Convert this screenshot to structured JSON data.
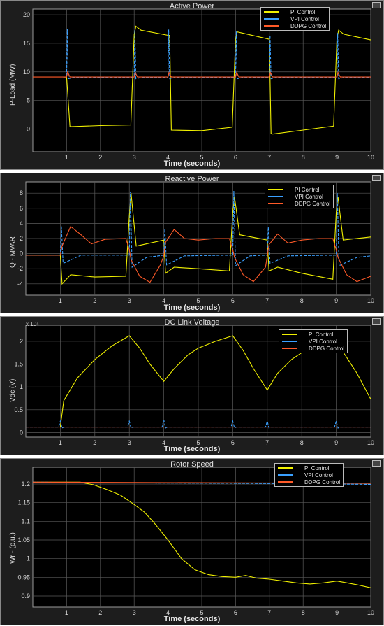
{
  "chart_data": [
    {
      "type": "line",
      "title": "Active Power",
      "xlabel": "Time (seconds)",
      "ylabel": "P-Load (MW)",
      "xlim": [
        0,
        10
      ],
      "ylim": [
        -4,
        21
      ],
      "xticks": [
        1,
        2,
        3,
        4,
        5,
        6,
        7,
        8,
        9,
        10
      ],
      "yticks": [
        0,
        5,
        10,
        15,
        20
      ],
      "grid": true,
      "legend": "top-right",
      "series": [
        {
          "name": "PI Control",
          "color": "#f0f000",
          "style": "solid",
          "x": [
            0.9,
            1.0,
            1.1,
            2.0,
            2.9,
            3.0,
            3.05,
            3.2,
            4.0,
            4.05,
            4.1,
            5.0,
            5.9,
            6.0,
            6.05,
            6.2,
            7.0,
            7.05,
            7.1,
            8.0,
            8.9,
            9.0,
            9.05,
            9.2,
            10.0
          ],
          "y": [
            9.1,
            9.1,
            0.4,
            0.6,
            0.7,
            16.5,
            18.0,
            17.3,
            16.4,
            16.4,
            -0.2,
            -0.3,
            0.3,
            15.8,
            17.0,
            16.8,
            15.7,
            -0.8,
            -0.9,
            -0.2,
            0.5,
            15.9,
            17.3,
            16.6,
            15.6
          ]
        },
        {
          "name": "VPI Control",
          "color": "#3aa0ff",
          "style": "dashed",
          "x": [
            0.9,
            1.0,
            1.02,
            1.05,
            1.2,
            2.95,
            3.0,
            3.02,
            3.05,
            3.2,
            3.95,
            4.0,
            4.02,
            4.05,
            4.2,
            5.95,
            6.0,
            6.02,
            6.05,
            6.2,
            6.95,
            7.0,
            7.02,
            7.05,
            7.2,
            8.95,
            9.0,
            9.02,
            9.05,
            9.2,
            10.0
          ],
          "y": [
            9.1,
            9.1,
            17.5,
            8.8,
            9.0,
            9.0,
            9.1,
            17.3,
            8.8,
            9.0,
            9.0,
            9.1,
            17.4,
            8.8,
            9.0,
            9.0,
            9.1,
            17.1,
            8.8,
            9.0,
            9.0,
            9.1,
            16.4,
            8.8,
            9.0,
            9.0,
            9.1,
            16.8,
            8.8,
            9.0,
            9.0
          ]
        },
        {
          "name": "DDPG Control",
          "color": "#ff5a28",
          "style": "solid",
          "x": [
            0.0,
            1.0,
            1.03,
            1.1,
            3.0,
            3.03,
            3.1,
            4.0,
            4.03,
            4.1,
            6.0,
            6.03,
            6.1,
            7.0,
            7.03,
            7.1,
            9.0,
            9.03,
            9.1,
            10.0
          ],
          "y": [
            9.1,
            9.1,
            10.0,
            9.1,
            9.1,
            9.9,
            9.1,
            9.1,
            9.9,
            9.1,
            9.1,
            9.9,
            9.1,
            9.1,
            9.9,
            9.1,
            9.1,
            9.9,
            9.1,
            9.1
          ]
        }
      ]
    },
    {
      "type": "line",
      "title": "Reactive Power",
      "xlabel": "Time (seconds)",
      "ylabel": "Q - MVAR",
      "xlim": [
        0,
        10
      ],
      "ylim": [
        -5.5,
        9.5
      ],
      "xticks": [
        1,
        2,
        3,
        4,
        5,
        6,
        7,
        8,
        9,
        10
      ],
      "yticks": [
        -4,
        -2,
        0,
        2,
        4,
        6,
        8
      ],
      "grid": true,
      "legend": "top-right",
      "series": [
        {
          "name": "PI Control",
          "color": "#f0f000",
          "style": "solid",
          "x": [
            0.0,
            1.0,
            1.05,
            1.3,
            2.0,
            2.9,
            3.0,
            3.05,
            3.2,
            4.0,
            4.05,
            4.3,
            5.0,
            5.9,
            6.0,
            6.05,
            6.2,
            7.0,
            7.05,
            7.3,
            8.0,
            8.9,
            9.0,
            9.05,
            9.2,
            10.0
          ],
          "y": [
            -0.2,
            -0.2,
            -4.0,
            -2.8,
            -3.1,
            -3.0,
            5.0,
            8.0,
            1.0,
            1.8,
            -2.6,
            -1.8,
            -2.0,
            -2.3,
            5.5,
            7.5,
            2.5,
            1.8,
            -2.3,
            -1.8,
            -2.6,
            -3.4,
            5.5,
            7.5,
            1.8,
            2.2
          ]
        },
        {
          "name": "VPI Control",
          "color": "#3aa0ff",
          "style": "dashed",
          "x": [
            0.0,
            1.0,
            1.03,
            1.08,
            1.6,
            3.0,
            3.03,
            3.08,
            3.5,
            4.0,
            4.03,
            4.08,
            4.6,
            6.0,
            6.03,
            6.08,
            6.5,
            7.0,
            7.03,
            7.08,
            7.6,
            9.0,
            9.03,
            9.08,
            9.6,
            10.0
          ],
          "y": [
            -0.2,
            -0.2,
            3.6,
            -1.3,
            -0.2,
            -0.2,
            8.2,
            -1.8,
            -0.5,
            -0.2,
            3.3,
            -1.5,
            -0.3,
            -0.2,
            8.3,
            -1.6,
            -0.3,
            -0.2,
            3.5,
            -1.3,
            -0.3,
            -0.2,
            8.0,
            -1.6,
            -0.5,
            -0.3
          ]
        },
        {
          "name": "DDPG Control",
          "color": "#ff5a28",
          "style": "solid",
          "x": [
            0.0,
            1.0,
            1.05,
            1.3,
            1.6,
            1.9,
            2.3,
            2.9,
            3.0,
            3.05,
            3.3,
            3.6,
            3.9,
            4.0,
            4.05,
            4.3,
            4.6,
            5.0,
            5.5,
            5.9,
            6.0,
            6.05,
            6.3,
            6.6,
            6.95,
            7.0,
            7.05,
            7.3,
            7.6,
            8.0,
            8.5,
            8.9,
            9.0,
            9.05,
            9.3,
            9.6,
            10.0
          ],
          "y": [
            -0.2,
            -0.2,
            1.0,
            3.6,
            2.5,
            1.3,
            1.9,
            2.0,
            0.5,
            -0.8,
            -3.0,
            -3.8,
            -1.5,
            -0.3,
            1.5,
            3.2,
            2.0,
            1.8,
            2.0,
            2.0,
            0.5,
            -0.5,
            -2.8,
            -3.7,
            -1.8,
            -0.3,
            1.2,
            2.6,
            1.4,
            1.8,
            2.0,
            2.0,
            0.5,
            -0.5,
            -2.8,
            -3.7,
            -3.0
          ]
        }
      ]
    },
    {
      "type": "line",
      "title": "DC Link Voltage",
      "xlabel": "Time (seconds)",
      "ylabel": "Vdc (V)",
      "exponent": "x 10⁴",
      "xlim": [
        0,
        10
      ],
      "ylim": [
        -0.1,
        2.35
      ],
      "xticks": [
        1,
        2,
        3,
        4,
        5,
        6,
        7,
        8,
        9,
        10
      ],
      "yticks": [
        0,
        0.5,
        1,
        1.5,
        2
      ],
      "grid": true,
      "legend": "top-right",
      "series": [
        {
          "name": "PI Control",
          "color": "#f0f000",
          "style": "solid",
          "x": [
            1.0,
            1.1,
            1.5,
            2.0,
            2.5,
            3.0,
            3.3,
            3.6,
            4.0,
            4.3,
            4.7,
            5.0,
            5.5,
            6.0,
            6.3,
            6.6,
            7.0,
            7.3,
            7.7,
            8.0,
            8.5,
            9.0,
            9.3,
            9.6,
            10.0
          ],
          "y": [
            0.12,
            0.7,
            1.2,
            1.6,
            1.9,
            2.12,
            1.85,
            1.5,
            1.12,
            1.4,
            1.7,
            1.85,
            2.0,
            2.12,
            1.8,
            1.4,
            0.93,
            1.3,
            1.6,
            1.75,
            1.9,
            1.99,
            1.65,
            1.3,
            0.73
          ]
        },
        {
          "name": "VPI Control",
          "color": "#3aa0ff",
          "style": "dashed",
          "x": [
            0.0,
            0.95,
            1.0,
            1.05,
            1.1,
            2.95,
            3.0,
            3.05,
            3.1,
            3.95,
            4.0,
            4.05,
            4.1,
            5.95,
            6.0,
            6.05,
            6.1,
            6.95,
            7.0,
            7.05,
            7.1,
            8.95,
            9.0,
            9.05,
            9.1,
            10.0
          ],
          "y": [
            0.12,
            0.12,
            0.25,
            0.1,
            0.12,
            0.12,
            0.25,
            0.1,
            0.12,
            0.12,
            0.28,
            0.1,
            0.12,
            0.12,
            0.25,
            0.1,
            0.12,
            0.12,
            0.25,
            0.1,
            0.12,
            0.12,
            0.25,
            0.1,
            0.12,
            0.12
          ]
        },
        {
          "name": "DDPG Control",
          "color": "#ff5a28",
          "style": "solid",
          "x": [
            0.0,
            10.0
          ],
          "y": [
            0.12,
            0.12
          ]
        }
      ]
    },
    {
      "type": "line",
      "title": "Rotor Speed",
      "xlabel": "Time (seconds)",
      "ylabel": "Wr - (p.u.)",
      "xlim": [
        0,
        10
      ],
      "ylim": [
        0.87,
        1.245
      ],
      "xticks": [
        1,
        2,
        3,
        4,
        5,
        6,
        7,
        8,
        9,
        10
      ],
      "yticks": [
        0.9,
        0.95,
        1,
        1.05,
        1.1,
        1.15,
        1.2
      ],
      "grid": true,
      "legend": "top-right",
      "series": [
        {
          "name": "PI Control",
          "color": "#f0f000",
          "style": "solid",
          "x": [
            0.0,
            1.0,
            1.4,
            1.8,
            2.2,
            2.6,
            3.0,
            3.3,
            3.6,
            4.0,
            4.4,
            4.8,
            5.2,
            5.6,
            6.0,
            6.3,
            6.6,
            7.0,
            7.4,
            7.8,
            8.2,
            8.6,
            9.0,
            9.3,
            9.6,
            10.0
          ],
          "y": [
            1.205,
            1.205,
            1.205,
            1.198,
            1.185,
            1.17,
            1.145,
            1.125,
            1.095,
            1.05,
            1.0,
            0.97,
            0.957,
            0.952,
            0.95,
            0.955,
            0.948,
            0.945,
            0.94,
            0.935,
            0.932,
            0.935,
            0.94,
            0.935,
            0.93,
            0.922
          ]
        },
        {
          "name": "VPI Control",
          "color": "#3aa0ff",
          "style": "dashed",
          "x": [
            0.0,
            3.0,
            6.0,
            9.0,
            10.0
          ],
          "y": [
            1.205,
            1.203,
            1.202,
            1.2,
            1.199
          ]
        },
        {
          "name": "DDPG Control",
          "color": "#ff5a28",
          "style": "solid",
          "x": [
            0.0,
            10.0
          ],
          "y": [
            1.205,
            1.202
          ]
        }
      ]
    }
  ]
}
